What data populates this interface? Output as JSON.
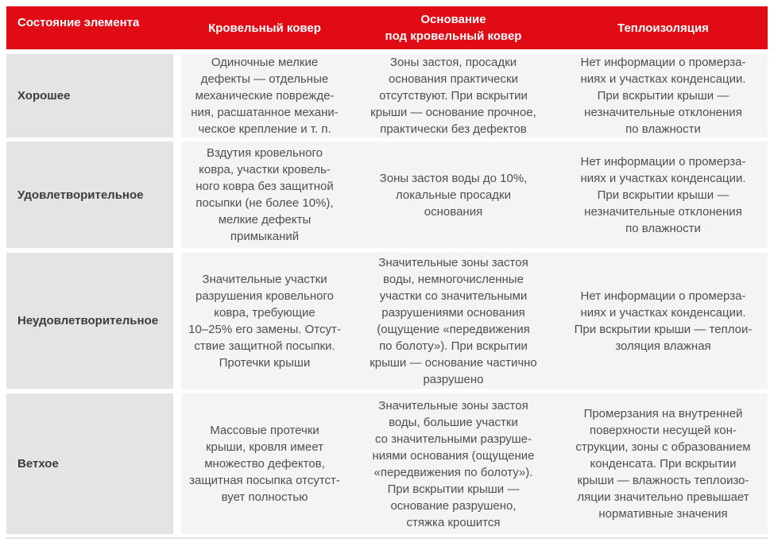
{
  "theme": {
    "header_bg": "#e00b14",
    "header_text": "#ffffff",
    "state_col_bg": "#e4e4e4",
    "body_col_bg": "#f4f4f5",
    "label_color": "#3c3c3e",
    "body_text_color": "#4f4f52",
    "bottom_line_color": "#e2e2e2"
  },
  "table": {
    "headers": {
      "state": "Состояние элемента",
      "roof_cover": "Кровельный ковер",
      "base": "Основание\nпод кровельный ковер",
      "insulation": "Теплоизоляция"
    },
    "rows": [
      {
        "state": "Хорошее",
        "roof_cover": "Одиночные мелкие\nдефекты — отдельные\nмеханические поврежде-\nния, расшатанное механи-\nческое крепление и т. п.",
        "base": "Зоны застоя, просадки\nоснования практически\nотсутствуют. При вскрытии\nкрыши — основание прочное,\nпрактически без дефектов",
        "insulation": "Нет информации о промерза-\nниях и участках конденсации.\nПри вскрытии крыши —\nнезначительные отклонения\nпо влажности"
      },
      {
        "state": "Удовлетворительное",
        "roof_cover": "Вздутия кровельного\nковра, участки кровель-\nного ковра без защитной\nпосыпки (не более 10%),\nмелкие дефекты\nпримыканий",
        "base": "Зоны застоя воды до 10%,\nлокальные просадки\nоснования",
        "insulation": "Нет информации о промерза-\nниях и участках конденсации.\nПри вскрытии крыши —\nнезначительные отклонения\nпо влажности"
      },
      {
        "state": "Неудовлетворительное",
        "roof_cover": "Значительные участки\nразрушения кровельного\nковра, требующие\n10–25% его замены. Отсут-\nствие защитной посыпки.\nПротечки крыши",
        "base": "Значительные зоны застоя\nводы, немногочисленные\nучастки со значительными\nразрушениями основания\n(ощущение «передвижения\nпо болоту»). При вскрытии\nкрыши — основание частично\nразрушено",
        "insulation": "Нет информации о промерза-\nниях и участках конденсации.\nПри вскрытии крыши — теплои-\nзоляция влажная"
      },
      {
        "state": "Ветхое",
        "roof_cover": "Массовые протечки\nкрыши, кровля имеет\nмножество дефектов,\nзащитная посыпка отсутст-\nвует полностью",
        "base": "Значительные зоны застоя\nводы, большие участки\nсо значительными разруше-\nниями основания (ощущение\n«передвижения по болоту»).\nПри вскрытии крыши —\nоснование разрушено,\nстяжка крошится",
        "insulation": "Промерзания на внутренней\nповерхности несущей кон-\nструкции, зоны с образованием\nконденсата. При вскрытии\nкрыши — влажность теплоизо-\nляции значительно превышает\nнормативные значения"
      }
    ]
  }
}
